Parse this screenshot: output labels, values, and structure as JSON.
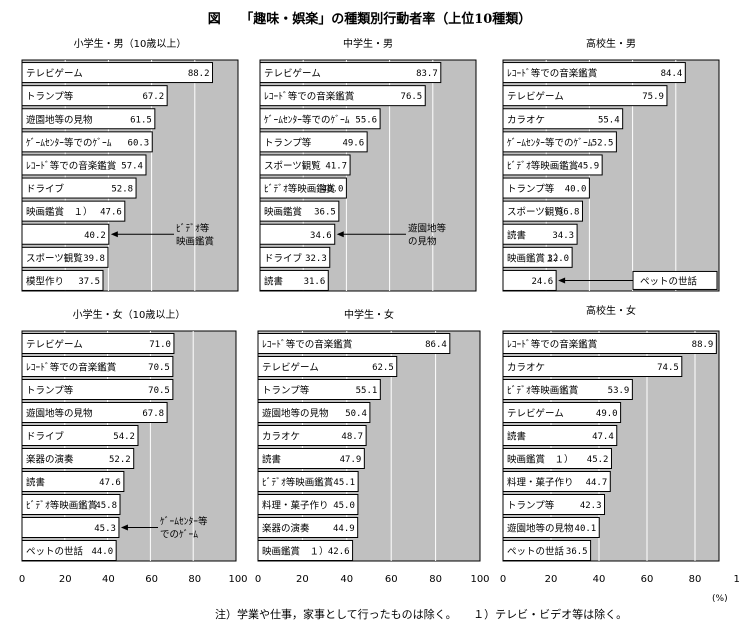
{
  "title": "図　　「趣味・娯楽」の種類別行動者率（上位10種類）",
  "footnote": "注）学業や仕事，家事として行ったものは除く。　　１）テレビ・ビデオ等は除く。",
  "unit_label": "(%)",
  "axis_ticks": [
    "0",
    "20",
    "40",
    "60",
    "80",
    "100"
  ],
  "chart_data": [
    {
      "type": "bar",
      "title": "小学生・男（10歳以上）",
      "xlim": [
        0,
        100
      ],
      "grid": true,
      "categories": [
        "テレビゲーム",
        "トランプ等",
        "遊園地等の見物",
        "ｹﾞｰﾑｾﾝﾀｰ等でのｹﾞｰﾑ",
        "ﾚｺｰﾄﾞ等での音楽鑑賞",
        "ドライブ",
        "映画鑑賞　１）",
        "",
        "スポーツ観覧",
        "模型作り"
      ],
      "values": [
        88.2,
        67.2,
        61.5,
        60.3,
        57.4,
        52.8,
        47.6,
        40.2,
        39.8,
        37.5
      ],
      "value_labels": [
        "88.2",
        "67.2",
        "61.5",
        "60.3",
        "57.4",
        "52.8",
        "47.6",
        "40.2",
        "39.8",
        "37.5"
      ],
      "annotation": {
        "row": 7,
        "text": [
          "ﾋﾞﾃﾞｵ等",
          "映画鑑賞"
        ]
      }
    },
    {
      "type": "bar",
      "title": "中学生・男",
      "xlim": [
        0,
        100
      ],
      "grid": true,
      "categories": [
        "テレビゲーム",
        "ﾚｺｰﾄﾞ等での音楽鑑賞",
        "ｹﾞｰﾑｾﾝﾀｰ等でのｹﾞｰﾑ",
        "トランプ等",
        "スポーツ観覧",
        "ﾋﾞﾃﾞｵ等映画鑑賞",
        "映画鑑賞",
        "",
        "ドライブ",
        "読書"
      ],
      "values": [
        83.7,
        76.5,
        55.6,
        49.6,
        41.7,
        40.0,
        36.5,
        34.6,
        32.3,
        31.6
      ],
      "value_labels": [
        "83.7",
        "76.5",
        "55.6",
        "49.6",
        "41.7",
        "40.0",
        "36.5",
        "34.6",
        "32.3",
        "31.6"
      ],
      "annotation": {
        "row": 7,
        "text": [
          "遊園地等",
          "の見物"
        ]
      }
    },
    {
      "type": "bar",
      "title": "高校生・男",
      "xlim": [
        0,
        100
      ],
      "grid": true,
      "categories": [
        "ﾚｺｰﾄﾞ等での音楽鑑賞",
        "テレビゲーム",
        "カラオケ",
        "ｹﾞｰﾑｾﾝﾀｰ等でのｹﾞｰﾑ",
        "ﾋﾞﾃﾞｵ等映画鑑賞",
        "トランプ等",
        "スポーツ観覧",
        "読書",
        "映画鑑賞１）",
        ""
      ],
      "values": [
        84.4,
        75.9,
        55.4,
        52.5,
        45.9,
        40.0,
        36.8,
        34.3,
        32.0,
        24.6
      ],
      "value_labels": [
        "84.4",
        "75.9",
        "55.4",
        "52.5",
        "45.9",
        "40.0",
        "36.8",
        "34.3",
        "32.0",
        "24.6"
      ],
      "annotation": {
        "row": 9,
        "text": [
          "ペットの世話"
        ]
      }
    },
    {
      "type": "bar",
      "title": "小学生・女（10歳以上）",
      "xlim": [
        0,
        100
      ],
      "grid": true,
      "categories": [
        "テレビゲーム",
        "ﾚｺｰﾄﾞ等での音楽鑑賞",
        "トランプ等",
        "遊園地等の見物",
        "ドライブ",
        "楽器の演奏",
        "読書",
        "ﾋﾞﾃﾞｵ等映画鑑賞",
        "",
        "ペットの世話"
      ],
      "values": [
        71.0,
        70.5,
        70.5,
        67.8,
        54.2,
        52.2,
        47.6,
        45.8,
        45.3,
        44.0
      ],
      "value_labels": [
        "71.0",
        "70.5",
        "70.5",
        "67.8",
        "54.2",
        "52.2",
        "47.6",
        "45.8",
        "45.3",
        "44.0"
      ],
      "annotation": {
        "row": 8,
        "text": [
          "ｹﾞｰﾑｾﾝﾀｰ等",
          "でのｹﾞｰﾑ"
        ]
      }
    },
    {
      "type": "bar",
      "title": "中学生・女",
      "xlim": [
        0,
        100
      ],
      "grid": true,
      "categories": [
        "ﾚｺｰﾄﾞ等での音楽鑑賞",
        "テレビゲーム",
        "トランプ等",
        "遊園地等の見物",
        "カラオケ",
        "読書",
        "ﾋﾞﾃﾞｵ等映画鑑賞",
        "料理・菓子作り",
        "楽器の演奏",
        "映画鑑賞　１）"
      ],
      "values": [
        86.4,
        62.5,
        55.1,
        50.4,
        48.7,
        47.9,
        45.1,
        45.0,
        44.9,
        42.6
      ],
      "value_labels": [
        "86.4",
        "62.5",
        "55.1",
        "50.4",
        "48.7",
        "47.9",
        "45.1",
        "45.0",
        "44.9",
        "42.6"
      ]
    },
    {
      "type": "bar",
      "title": "高校生・女",
      "xlim": [
        0,
        100
      ],
      "grid": true,
      "categories": [
        "ﾚｺｰﾄﾞ等での音楽鑑賞",
        "カラオケ",
        "ﾋﾞﾃﾞｵ等映画鑑賞",
        "テレビゲーム",
        "読書",
        "映画鑑賞　１）",
        "料理・菓子作り",
        "トランプ等",
        "遊園地等の見物",
        "ペットの世話"
      ],
      "values": [
        88.9,
        74.5,
        53.9,
        49.0,
        47.4,
        45.2,
        44.7,
        42.3,
        40.1,
        36.5
      ],
      "value_labels": [
        "88.9",
        "74.5",
        "53.9",
        "49.0",
        "47.4",
        "45.2",
        "44.7",
        "42.3",
        "40.1",
        "36.5"
      ]
    }
  ]
}
